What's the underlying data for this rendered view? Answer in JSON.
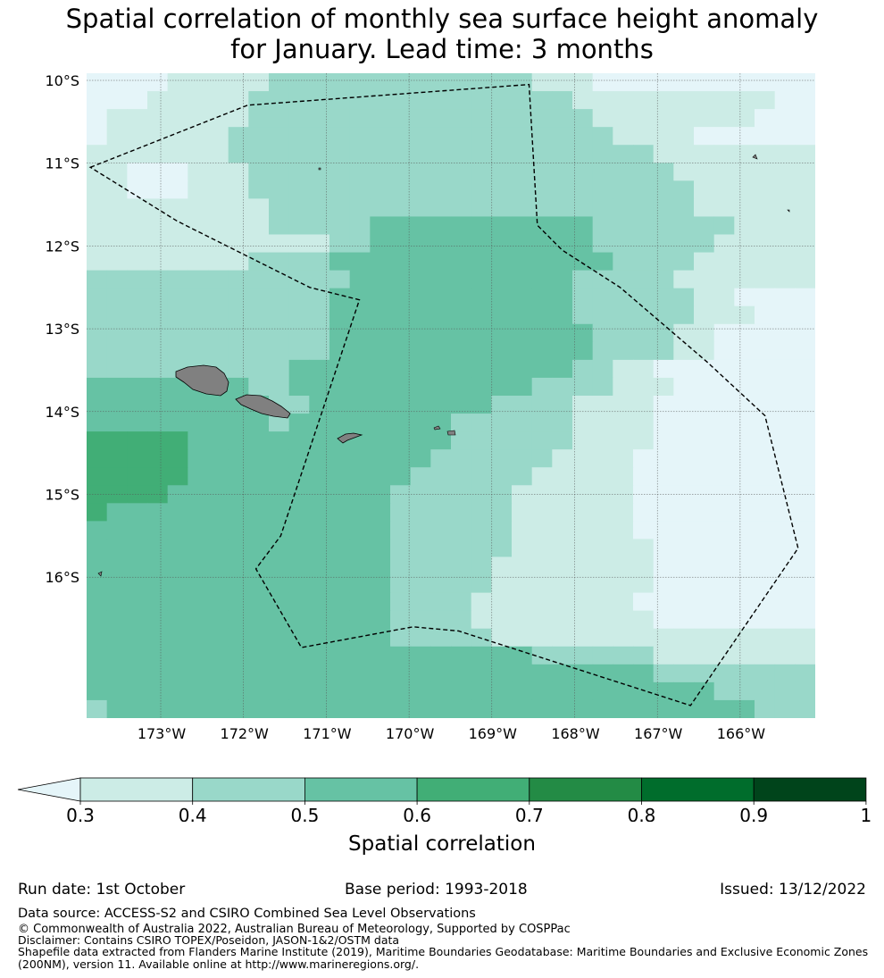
{
  "title_line1": "Spatial correlation of monthly sea surface height anomaly",
  "title_line2": "for January. Lead time: 3 months",
  "map": {
    "lon_range": [
      -174.0,
      -165.2
    ],
    "lat_range": [
      -17.8,
      -10.0
    ],
    "lat_ticks": [
      "10°S",
      "11°S",
      "12°S",
      "13°S",
      "14°S",
      "15°S",
      "16°S"
    ],
    "lon_ticks": [
      "173°W",
      "172°W",
      "171°W",
      "170°W",
      "169°W",
      "168°W",
      "167°W",
      "166°W"
    ],
    "eez_boundary": [
      [
        -173.85,
        -11.05
      ],
      [
        -171.95,
        -10.3
      ],
      [
        -168.55,
        -10.05
      ],
      [
        -168.45,
        -11.75
      ],
      [
        -168.15,
        -12.05
      ],
      [
        -167.45,
        -12.5
      ],
      [
        -166.4,
        -13.4
      ],
      [
        -165.7,
        -14.05
      ],
      [
        -165.3,
        -15.65
      ],
      [
        -166.6,
        -17.55
      ],
      [
        -169.4,
        -16.65
      ],
      [
        -169.95,
        -16.6
      ],
      [
        -171.3,
        -16.85
      ],
      [
        -171.85,
        -15.9
      ],
      [
        -171.55,
        -15.5
      ],
      [
        -171.0,
        -13.85
      ],
      [
        -170.6,
        -12.65
      ],
      [
        -171.2,
        -12.5
      ],
      [
        -172.8,
        -11.7
      ]
    ]
  },
  "colorbar": {
    "label": "Spatial correlation",
    "ticks": [
      "0.3",
      "0.4",
      "0.5",
      "0.6",
      "0.7",
      "0.8",
      "0.9",
      "1"
    ],
    "colors": [
      "#ccece6",
      "#99d8c9",
      "#66c2a4",
      "#41ae76",
      "#238b45",
      "#006d2c",
      "#00441b"
    ],
    "under_color": "#e5f5f9"
  },
  "footer": {
    "run_date": "Run date: 1st October",
    "base_period": "Base period: 1993-2018",
    "issued": "Issued: 13/12/2022",
    "data_source": "Data source: ACCESS-S2 and CSIRO Combined Sea Level Observations",
    "copyright": "© Commonwealth of Australia 2022, Australian Bureau of Meteorology, Supported by COSPPac",
    "disclaimer": "Disclaimer: Contains CSIRO TOPEX/Poseidon, JASON-1&2/OSTM data",
    "shapefile_1": "Shapefile data extracted from Flanders Marine Institute (2019), Maritime Boundaries Geodatabase: Maritime Boundaries and Exclusive Economic Zones",
    "shapefile_2": "(200NM), version 11. Available online at http://www.marineregions.org/."
  }
}
